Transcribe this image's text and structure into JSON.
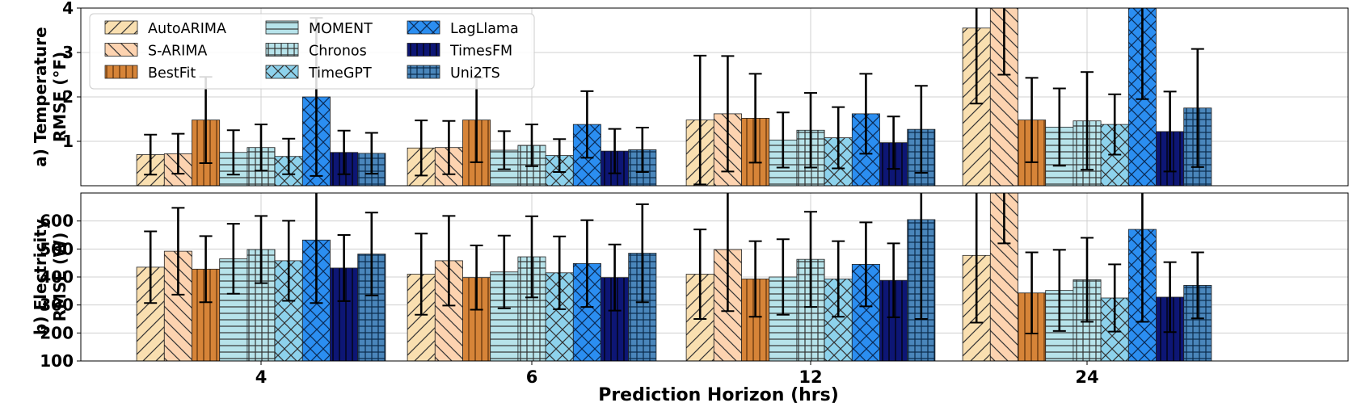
{
  "chart_data": [
    {
      "type": "bar",
      "panel": "top",
      "title": "",
      "ylabel_line1": "a) Temperature",
      "ylabel_line2": "RMSE (°F)",
      "xlabel": "",
      "ylim": [
        0,
        4
      ],
      "yticks": [
        "1",
        "2",
        "3",
        "4"
      ],
      "categories": [
        "4",
        "6",
        "12",
        "24"
      ],
      "grid": true,
      "legend": "top-left",
      "series": [
        {
          "name": "AutoARIMA",
          "values": [
            0.7,
            0.85,
            1.48,
            3.55
          ],
          "errors": [
            0.45,
            0.62,
            1.45,
            1.7
          ]
        },
        {
          "name": "S-ARIMA",
          "values": [
            0.72,
            0.86,
            1.62,
            4.0
          ],
          "errors": [
            0.45,
            0.6,
            1.3,
            1.5
          ]
        },
        {
          "name": "BestFit",
          "values": [
            1.48,
            1.48,
            1.52,
            1.48
          ],
          "errors": [
            0.97,
            0.95,
            1.0,
            0.95
          ]
        },
        {
          "name": "MOMENT",
          "values": [
            0.75,
            0.8,
            1.03,
            1.32
          ],
          "errors": [
            0.5,
            0.43,
            0.62,
            0.87
          ]
        },
        {
          "name": "Chronos",
          "values": [
            0.86,
            0.91,
            1.25,
            1.46
          ],
          "errors": [
            0.52,
            0.47,
            0.84,
            1.1
          ]
        },
        {
          "name": "TimeGPT",
          "values": [
            0.66,
            0.68,
            1.08,
            1.38
          ],
          "errors": [
            0.4,
            0.37,
            0.69,
            0.68
          ]
        },
        {
          "name": "LagLlama",
          "values": [
            2.0,
            1.38,
            1.62,
            4.0
          ],
          "errors": [
            1.78,
            0.75,
            0.9,
            2.05
          ]
        },
        {
          "name": "TimesFM",
          "values": [
            0.75,
            0.78,
            0.97,
            1.22
          ],
          "errors": [
            0.49,
            0.5,
            0.59,
            0.9
          ]
        },
        {
          "name": "Uni2TS",
          "values": [
            0.73,
            0.81,
            1.27,
            1.75
          ],
          "errors": [
            0.46,
            0.5,
            0.98,
            1.33
          ]
        }
      ]
    },
    {
      "type": "bar",
      "panel": "bottom",
      "title": "",
      "ylabel_line1": "b) Electricity",
      "ylabel_line2": "RMSE (W)",
      "xlabel": "Prediction Horizon (hrs)",
      "ylim": [
        100,
        700
      ],
      "yticks": [
        "100",
        "200",
        "300",
        "400",
        "500",
        "600"
      ],
      "categories": [
        "4",
        "6",
        "12",
        "24"
      ],
      "grid": true,
      "series": [
        {
          "name": "AutoARIMA",
          "values": [
            435,
            410,
            410,
            477
          ],
          "errors": [
            128,
            145,
            160,
            240
          ]
        },
        {
          "name": "S-ARIMA",
          "values": [
            492,
            458,
            498,
            700
          ],
          "errors": [
            155,
            160,
            220,
            180
          ]
        },
        {
          "name": "BestFit",
          "values": [
            428,
            398,
            393,
            343
          ],
          "errors": [
            118,
            115,
            135,
            145
          ]
        },
        {
          "name": "MOMENT",
          "values": [
            465,
            418,
            400,
            352
          ],
          "errors": [
            125,
            130,
            135,
            145
          ]
        },
        {
          "name": "Chronos",
          "values": [
            498,
            472,
            463,
            390
          ],
          "errors": [
            120,
            145,
            170,
            150
          ]
        },
        {
          "name": "TimeGPT",
          "values": [
            458,
            415,
            393,
            325
          ],
          "errors": [
            143,
            130,
            135,
            120
          ]
        },
        {
          "name": "LagLlama",
          "values": [
            532,
            448,
            445,
            570
          ],
          "errors": [
            225,
            155,
            150,
            330
          ]
        },
        {
          "name": "TimesFM",
          "values": [
            432,
            398,
            388,
            328
          ],
          "errors": [
            118,
            118,
            132,
            125
          ]
        },
        {
          "name": "Uni2TS",
          "values": [
            482,
            485,
            605,
            370
          ],
          "errors": [
            148,
            175,
            355,
            118
          ]
        }
      ]
    }
  ],
  "legend": {
    "items": [
      "AutoARIMA",
      "S-ARIMA",
      "BestFit",
      "MOMENT",
      "Chronos",
      "TimeGPT",
      "LagLlama",
      "TimesFM",
      "Uni2TS"
    ]
  },
  "styles": [
    {
      "name": "AutoARIMA",
      "fill": "#F9DFB0",
      "hatch": "fslash",
      "hatchColor": "#333333"
    },
    {
      "name": "S-ARIMA",
      "fill": "#FDD3B0",
      "hatch": "bslash",
      "hatchColor": "#333333"
    },
    {
      "name": "BestFit",
      "fill": "#D68438",
      "hatch": "vert",
      "hatchColor": "#5a2f0a"
    },
    {
      "name": "MOMENT",
      "fill": "#B7E3EA",
      "hatch": "horiz",
      "hatchColor": "#333333"
    },
    {
      "name": "Chronos",
      "fill": "#B7E3EA",
      "hatch": "grid",
      "hatchColor": "#333333"
    },
    {
      "name": "TimeGPT",
      "fill": "#8DD2EC",
      "hatch": "cross",
      "hatchColor": "#333333"
    },
    {
      "name": "LagLlama",
      "fill": "#2B8EF1",
      "hatch": "cross",
      "hatchColor": "#0a2a55"
    },
    {
      "name": "TimesFM",
      "fill": "#0D1675",
      "hatch": "vert",
      "hatchColor": "#000000"
    },
    {
      "name": "Uni2TS",
      "fill": "#4A86BB",
      "hatch": "grid",
      "hatchColor": "#0b2a4a"
    }
  ]
}
